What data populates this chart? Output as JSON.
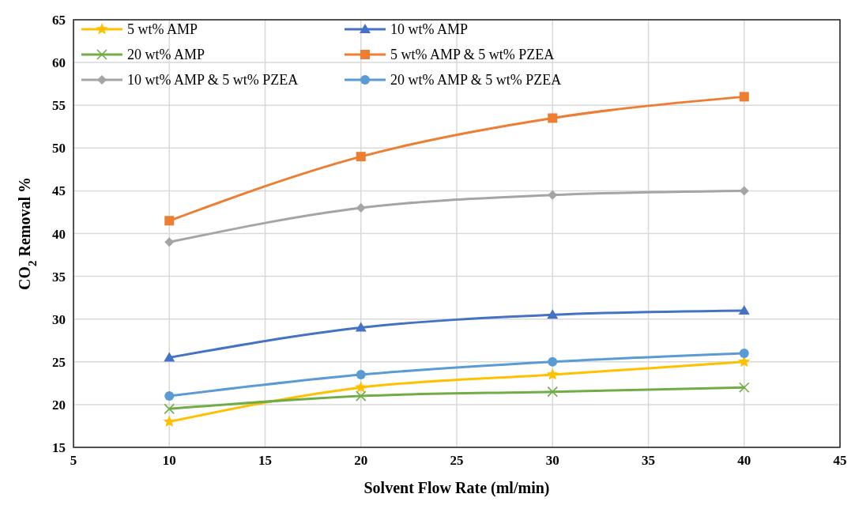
{
  "chart_data": {
    "type": "line",
    "xlabel": "Solvent Flow Rate (ml/min)",
    "ylabel": "CO$_{2}$ Removal %",
    "x": [
      10,
      20,
      30,
      40
    ],
    "xlim": [
      5,
      45
    ],
    "xticks": [
      5,
      10,
      15,
      20,
      25,
      30,
      35,
      40,
      45
    ],
    "ylim": [
      15,
      65
    ],
    "yticks": [
      15,
      20,
      25,
      30,
      35,
      40,
      45,
      50,
      55,
      60,
      65
    ],
    "grid": true,
    "legend": "top left",
    "series": [
      {
        "name": "5 wt% AMP",
        "color": "#ffc000",
        "marker": "star",
        "values": [
          18,
          22,
          23.5,
          25
        ]
      },
      {
        "name": "10 wt% AMP",
        "color": "#4472c4",
        "marker": "triangle",
        "values": [
          25.5,
          29,
          30.5,
          31
        ]
      },
      {
        "name": "20 wt% AMP",
        "color": "#70ad47",
        "marker": "cross",
        "values": [
          19.5,
          21,
          21.5,
          22
        ]
      },
      {
        "name": "5 wt% AMP & 5 wt% PZEA",
        "color": "#ed7d31",
        "marker": "square",
        "values": [
          41.5,
          49,
          53.5,
          56
        ]
      },
      {
        "name": "10 wt% AMP & 5 wt% PZEA",
        "color": "#a5a5a5",
        "marker": "diamond",
        "values": [
          39,
          43,
          44.5,
          45
        ]
      },
      {
        "name": "20 wt% AMP & 5 wt% PZEA",
        "color": "#5b9bd5",
        "marker": "circle",
        "values": [
          21,
          23.5,
          25,
          26
        ]
      }
    ]
  }
}
